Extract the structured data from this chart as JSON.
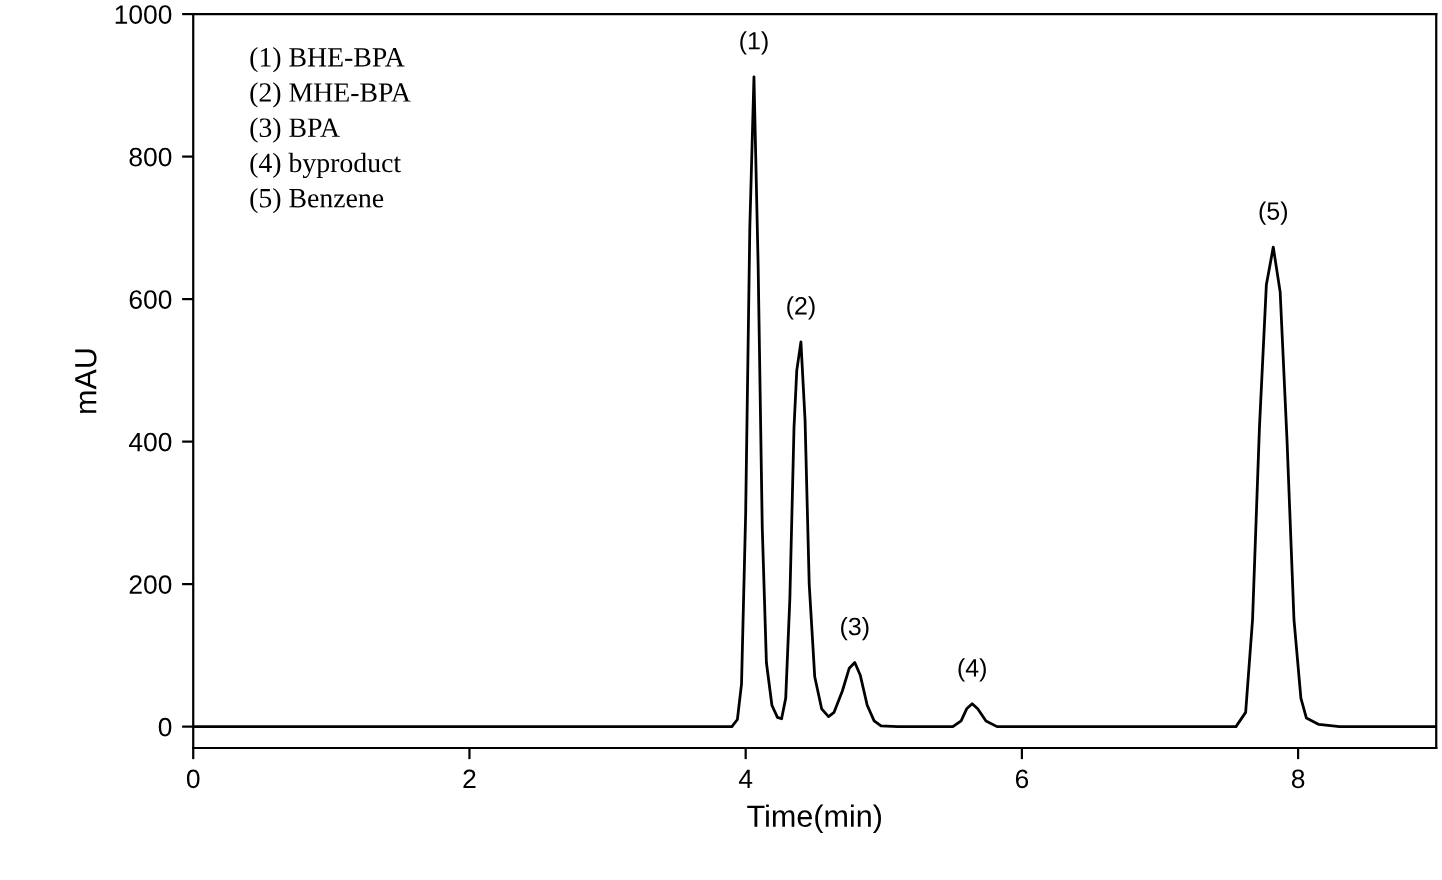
{
  "chart_data": {
    "type": "line",
    "xlabel": "Time(min)",
    "ylabel": "mAU",
    "xlim": [
      0,
      9
    ],
    "xticks": [
      0,
      2,
      4,
      6,
      8
    ],
    "ylim": [
      -30,
      1000
    ],
    "yticks": [
      0,
      200,
      400,
      600,
      800,
      1000
    ],
    "grid": false,
    "legend": false,
    "marker": "none",
    "line_style": "solid",
    "series": [
      {
        "color": "#000000",
        "x": [
          0,
          3.9,
          3.94,
          3.97,
          4.0,
          4.03,
          4.06,
          4.09,
          4.12,
          4.15,
          4.19,
          4.23,
          4.26,
          4.29,
          4.32,
          4.35,
          4.37,
          4.4,
          4.43,
          4.46,
          4.5,
          4.55,
          4.6,
          4.64,
          4.7,
          4.75,
          4.79,
          4.83,
          4.88,
          4.93,
          4.98,
          5.1,
          5.5,
          5.56,
          5.6,
          5.64,
          5.68,
          5.74,
          5.82,
          7.55,
          7.62,
          7.67,
          7.72,
          7.77,
          7.82,
          7.87,
          7.92,
          7.97,
          8.02,
          8.06,
          8.15,
          8.3,
          9
        ],
        "values": [
          0,
          0,
          10,
          60,
          300,
          700,
          912,
          650,
          280,
          90,
          30,
          13,
          11,
          40,
          180,
          420,
          500,
          540,
          430,
          200,
          70,
          25,
          14,
          20,
          50,
          82,
          90,
          72,
          30,
          8,
          1,
          0,
          0,
          8,
          25,
          32,
          25,
          8,
          0,
          0,
          20,
          150,
          420,
          620,
          673,
          610,
          400,
          150,
          40,
          12,
          3,
          0,
          0
        ]
      }
    ],
    "annotations": [
      {
        "text": "(1)",
        "x": 4.06,
        "y": 912
      },
      {
        "text": "(2)",
        "x": 4.4,
        "y": 540
      },
      {
        "text": "(3)",
        "x": 4.79,
        "y": 90
      },
      {
        "text": "(4)",
        "x": 5.64,
        "y": 32
      },
      {
        "text": "(5)",
        "x": 7.82,
        "y": 673
      },
      "(1) BHE-BPA",
      "(2) MHE-BPA",
      "(3) BPA",
      "(4) byproduct",
      "(5) Benzene"
    ]
  }
}
